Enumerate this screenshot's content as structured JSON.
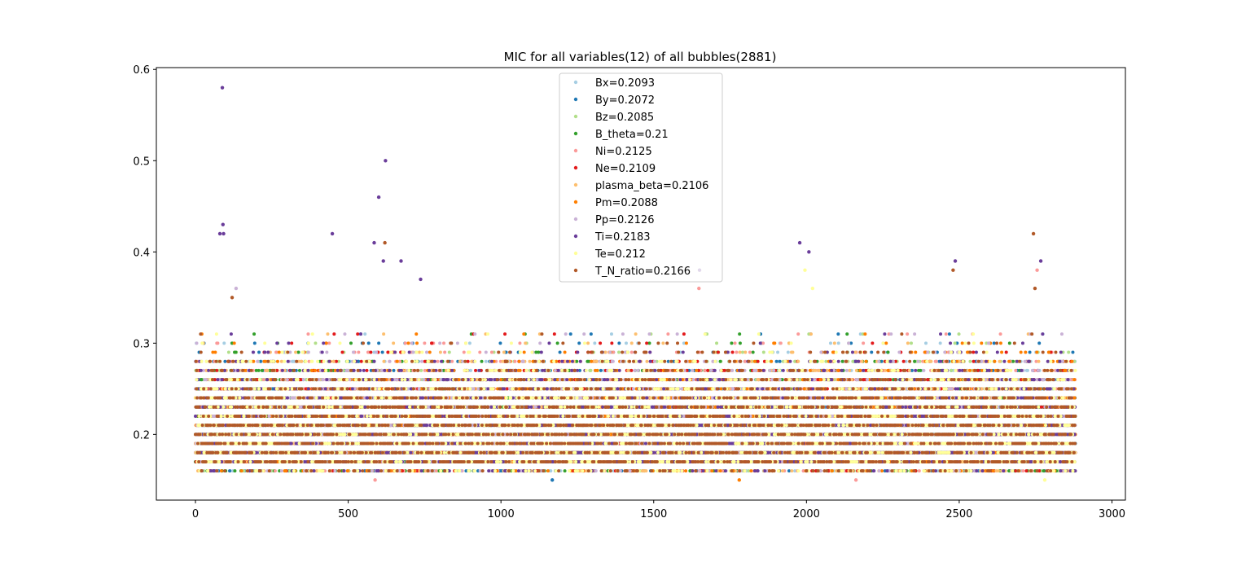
{
  "chart_data": {
    "type": "scatter",
    "title": "MIC for all variables(12) of all bubbles(2881)",
    "xlabel": "",
    "ylabel": "",
    "xlim": [
      -128,
      3044
    ],
    "ylim": [
      0.128,
      0.602
    ],
    "xticks": [
      0,
      500,
      1000,
      1500,
      2000,
      2500,
      3000
    ],
    "yticks": [
      0.2,
      0.3,
      0.4,
      0.5,
      0.6
    ],
    "n_points": 2881,
    "grid": false,
    "legend_position": "upper center",
    "series": [
      {
        "name": "Bx=0.2093",
        "color": "#a6cee3"
      },
      {
        "name": "By=0.2072",
        "color": "#1f78b4"
      },
      {
        "name": "Bz=0.2085",
        "color": "#b2df8a"
      },
      {
        "name": "B_theta=0.21",
        "color": "#33a02c"
      },
      {
        "name": "Ni=0.2125",
        "color": "#fb9a99"
      },
      {
        "name": "Ne=0.2109",
        "color": "#e31a1c"
      },
      {
        "name": "plasma_beta=0.2106",
        "color": "#fdbf6f"
      },
      {
        "name": "Pm=0.2088",
        "color": "#ff7f00"
      },
      {
        "name": "Pp=0.2126",
        "color": "#cab2d6"
      },
      {
        "name": "Ti=0.2183",
        "color": "#6a3d9a"
      },
      {
        "name": "Te=0.212",
        "color": "#ffff99"
      },
      {
        "name": "T_N_ratio=0.2166",
        "color": "#b15928"
      }
    ],
    "outliers": [
      {
        "series": "Ti=0.2183",
        "x": 88,
        "y": 0.58
      },
      {
        "series": "Ti=0.2183",
        "x": 90,
        "y": 0.43
      },
      {
        "series": "Ti=0.2183",
        "x": 80,
        "y": 0.42
      },
      {
        "series": "Ti=0.2183",
        "x": 92,
        "y": 0.42
      },
      {
        "series": "T_N_ratio=0.2166",
        "x": 120,
        "y": 0.35
      },
      {
        "series": "Pp=0.2126",
        "x": 133,
        "y": 0.36
      },
      {
        "series": "Ti=0.2183",
        "x": 622,
        "y": 0.5
      },
      {
        "series": "Ti=0.2183",
        "x": 600,
        "y": 0.46
      },
      {
        "series": "Ti=0.2183",
        "x": 448,
        "y": 0.42
      },
      {
        "series": "Ti=0.2183",
        "x": 585,
        "y": 0.41
      },
      {
        "series": "T_N_ratio=0.2166",
        "x": 620,
        "y": 0.41
      },
      {
        "series": "Ti=0.2183",
        "x": 615,
        "y": 0.39
      },
      {
        "series": "Ti=0.2183",
        "x": 673,
        "y": 0.39
      },
      {
        "series": "Ti=0.2183",
        "x": 737,
        "y": 0.37
      },
      {
        "series": "Ti=0.2183",
        "x": 1978,
        "y": 0.41
      },
      {
        "series": "Ti=0.2183",
        "x": 2008,
        "y": 0.4
      },
      {
        "series": "Te=0.212",
        "x": 1995,
        "y": 0.38
      },
      {
        "series": "Te=0.212",
        "x": 2020,
        "y": 0.36
      },
      {
        "series": "Ti=0.2183",
        "x": 1650,
        "y": 0.38
      },
      {
        "series": "Ni=0.2125",
        "x": 1648,
        "y": 0.36
      },
      {
        "series": "Ti=0.2183",
        "x": 2487,
        "y": 0.39
      },
      {
        "series": "T_N_ratio=0.2166",
        "x": 2480,
        "y": 0.38
      },
      {
        "series": "T_N_ratio=0.2166",
        "x": 2743,
        "y": 0.42
      },
      {
        "series": "Ti=0.2183",
        "x": 2767,
        "y": 0.39
      },
      {
        "series": "Ni=0.2125",
        "x": 2755,
        "y": 0.38
      },
      {
        "series": "T_N_ratio=0.2166",
        "x": 2748,
        "y": 0.36
      },
      {
        "series": "Ni=0.2125",
        "x": 588,
        "y": 0.15
      },
      {
        "series": "By=0.2072",
        "x": 1168,
        "y": 0.15
      },
      {
        "series": "Pm=0.2088",
        "x": 1780,
        "y": 0.15
      },
      {
        "series": "Ni=0.2125",
        "x": 2162,
        "y": 0.15
      },
      {
        "series": "Te=0.212",
        "x": 2780,
        "y": 0.15
      }
    ]
  }
}
